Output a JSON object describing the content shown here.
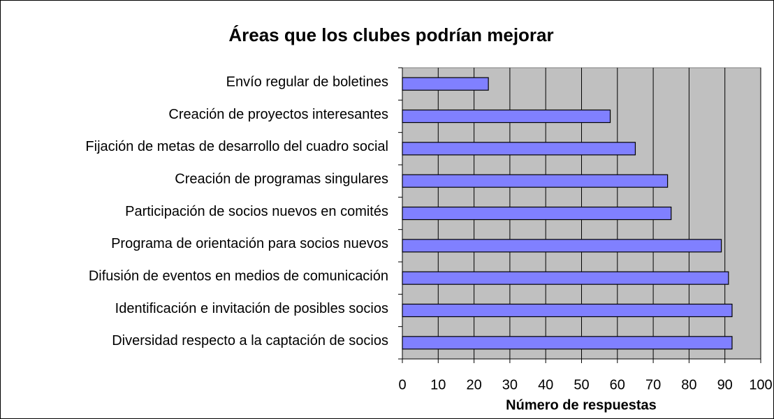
{
  "chart_data": {
    "type": "bar",
    "orientation": "horizontal",
    "title": "Áreas que los clubes podrían mejorar",
    "xlabel": "Número de respuestas",
    "categories": [
      "Envío regular de boletines",
      "Creación de proyectos interesantes",
      "Fijación de metas de desarrollo del cuadro social",
      "Creación de programas singulares",
      "Participación de socios nuevos en comités",
      "Programa de orientación para socios nuevos",
      "Difusión de eventos en medios de comunicación",
      "Identificación e invitación de posibles socios",
      "Diversidad respecto a la captación de socios"
    ],
    "values": [
      24,
      58,
      65,
      74,
      75,
      89,
      91,
      92,
      92
    ],
    "color": "#8080ff",
    "xlim": [
      0,
      100
    ],
    "xticks": [
      0,
      10,
      20,
      30,
      40,
      50,
      60,
      70,
      80,
      90,
      100
    ],
    "grid": true
  }
}
